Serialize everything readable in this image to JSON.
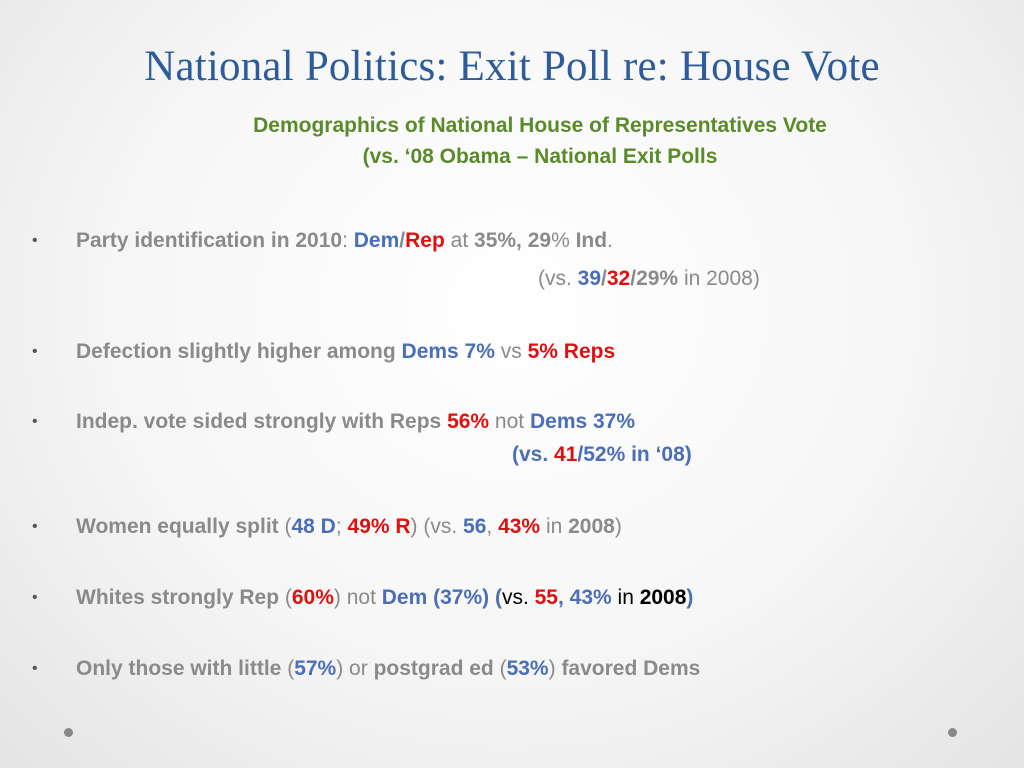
{
  "slide": {
    "title": "National Politics: Exit Poll re: House Vote",
    "subtitle_line1": "Demographics of National House of Representatives Vote",
    "subtitle_line2": "(vs. ‘08 Obama – National Exit Polls"
  },
  "bullet_glyph": "•",
  "b1": {
    "t1": "Party identification in 2010",
    "t2": ": ",
    "t3": "Dem",
    "t4": "/",
    "t5": "Rep",
    "t6": " at ",
    "t7": "35%, 29",
    "t8": "% ",
    "t9": "Ind",
    "t10": ".",
    "l2_1": "(vs. ",
    "l2_2": "39",
    "l2_3": "/",
    "l2_4": "32",
    "l2_5": "/29%",
    "l2_6": " in 2008)"
  },
  "b2": {
    "t1": "Defection slightly higher among ",
    "t2": "Dems 7%",
    "t3": " vs ",
    "t4": "5% Reps"
  },
  "b3": {
    "t1": "Indep. vote sided strongly with Reps ",
    "t2": "56%",
    "t3": " not ",
    "t4": "Dems 37%",
    "l2_1": "(vs. ",
    "l2_2": "41",
    "l2_3": "/52% in ‘08)"
  },
  "b4": {
    "t1": "Women equally split",
    "t2": " (",
    "t3": "48 D",
    "t4": "; ",
    "t5": "49% R",
    "t6": ") (vs. ",
    "t7": "56",
    "t8": ", ",
    "t9": "43%",
    "t10": " in ",
    "t11": "2008",
    "t12": ")"
  },
  "b5": {
    "t1": "Whites strongly Rep",
    "t2": " (",
    "t3": "60%",
    "t4": ") not ",
    "t5": "Dem (37%) (",
    "t6": "vs. ",
    "t7": "55",
    "t8": ", 43%",
    "t9": " in ",
    "t10": "2008",
    "t11": ")"
  },
  "b6": {
    "t1": "Only those with little",
    "t2": " (",
    "t3": "57%",
    "t4": ") or ",
    "t5": "postgrad ed",
    "t6": " (",
    "t7": "53%",
    "t8": ") ",
    "t9": "favored Dems"
  },
  "colors": {
    "title": "#2E5C9A",
    "subtitle": "#5A8A2A",
    "body_gray": "#8A8A8A",
    "dem_blue": "#4A6FB8",
    "rep_red": "#E01010"
  }
}
